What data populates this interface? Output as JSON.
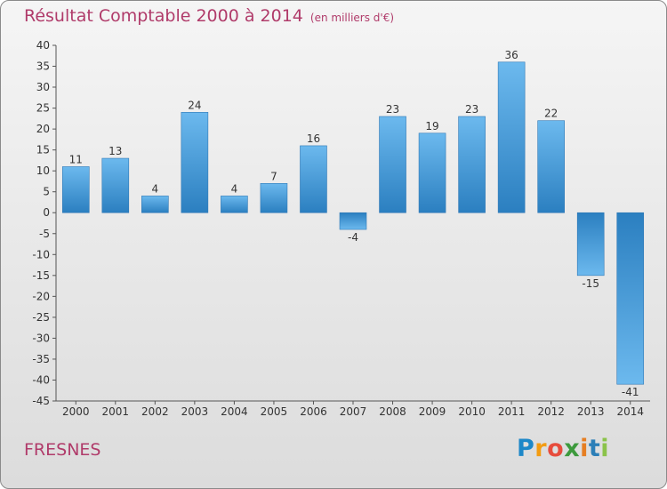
{
  "chart_data": {
    "type": "bar",
    "title": "Résultat Comptable 2000 à 2014",
    "subtitle": "(en milliers d'€)",
    "categories": [
      "2000",
      "2001",
      "2002",
      "2003",
      "2004",
      "2005",
      "2006",
      "2007",
      "2008",
      "2009",
      "2010",
      "2011",
      "2012",
      "2013",
      "2014"
    ],
    "values": [
      11,
      13,
      4,
      24,
      4,
      7,
      16,
      -4,
      23,
      19,
      23,
      36,
      22,
      -15,
      -41
    ],
    "ylim": [
      -45,
      40
    ],
    "yticks": [
      40,
      35,
      30,
      25,
      20,
      15,
      10,
      5,
      0,
      -5,
      -10,
      -15,
      -20,
      -25,
      -30,
      -35,
      -40,
      -45
    ],
    "grid": false,
    "xlabel": "",
    "ylabel": ""
  },
  "town": "FRESNES",
  "brand": {
    "letters": [
      "P",
      "r",
      "o",
      "x",
      "i",
      "t",
      "i"
    ],
    "colors": [
      "#1e88c8",
      "#f39c12",
      "#e74c3c",
      "#3d9a3d",
      "#e67e22",
      "#2c7fb8",
      "#8bc34a"
    ]
  },
  "colors": {
    "title": "#b03b6a",
    "bar_light": "#6ab6ec",
    "bar_dark": "#2a7fc1",
    "axis": "#555555"
  }
}
